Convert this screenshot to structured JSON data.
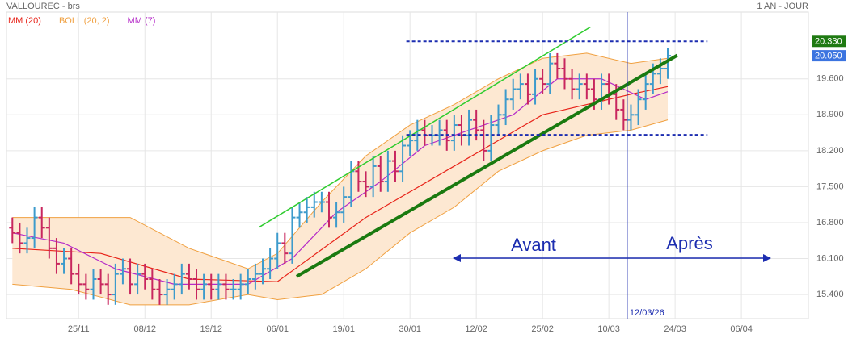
{
  "chart_data": {
    "type": "ohlc",
    "title": "VALLOUREC - brs",
    "period": "1 AN - JOUR",
    "xlim": [
      -2.8,
      106.1
    ],
    "ylim": [
      14.93,
      20.9
    ],
    "xticks": [
      {
        "value": 7,
        "label": "25/11"
      },
      {
        "value": 16,
        "label": "08/12"
      },
      {
        "value": 25,
        "label": "19/12"
      },
      {
        "value": 34,
        "label": "06/01"
      },
      {
        "value": 43,
        "label": "19/01"
      },
      {
        "value": 52,
        "label": "30/01"
      },
      {
        "value": 61,
        "label": "12/02"
      },
      {
        "value": 70,
        "label": "25/02"
      },
      {
        "value": 79,
        "label": "10/03"
      },
      {
        "value": 88,
        "label": "24/03"
      },
      {
        "value": 97,
        "label": "06/04"
      }
    ],
    "yticks": [
      {
        "value": 15.4,
        "label": "15.400"
      },
      {
        "value": 16.1,
        "label": "16.100"
      },
      {
        "value": 16.8,
        "label": "16.800"
      },
      {
        "value": 17.5,
        "label": "17.500"
      },
      {
        "value": 18.2,
        "label": "18.200"
      },
      {
        "value": 18.9,
        "label": "18.900"
      },
      {
        "value": 19.6,
        "label": "19.600"
      }
    ],
    "grid": true,
    "x": [
      -2,
      -1,
      0,
      1,
      2,
      3,
      4,
      5,
      6,
      7,
      8,
      9,
      10,
      11,
      12,
      13,
      14,
      15,
      16,
      17,
      18,
      19,
      20,
      21,
      22,
      23,
      24,
      25,
      26,
      27,
      28,
      29,
      30,
      31,
      32,
      33,
      34,
      35,
      36,
      37,
      38,
      39,
      40,
      41,
      42,
      43,
      44,
      45,
      46,
      47,
      48,
      49,
      50,
      51,
      52,
      53,
      54,
      55,
      56,
      57,
      58,
      59,
      60,
      61,
      62,
      63,
      64,
      65,
      66,
      67,
      68,
      69,
      70,
      71,
      72,
      73,
      74,
      75,
      76,
      77,
      78,
      79,
      80,
      81,
      82,
      83,
      84,
      85,
      86,
      87
    ],
    "up_color": "#3d9bcc",
    "down_color": "#c8265e",
    "open": [
      16.7,
      16.6,
      16.4,
      16.5,
      16.9,
      16.7,
      16.3,
      16.0,
      16.1,
      15.8,
      15.6,
      15.5,
      15.7,
      15.6,
      15.4,
      15.8,
      15.9,
      15.6,
      15.8,
      15.7,
      15.5,
      15.4,
      15.5,
      15.6,
      15.8,
      15.7,
      15.5,
      15.6,
      15.5,
      15.6,
      15.5,
      15.5,
      15.6,
      15.7,
      15.8,
      15.9,
      16.1,
      16.4,
      16.2,
      16.9,
      17.0,
      17.1,
      17.2,
      17.2,
      16.9,
      17.0,
      17.3,
      17.8,
      17.6,
      17.5,
      17.9,
      17.6,
      18.0,
      17.8,
      18.3,
      18.4,
      18.6,
      18.5,
      18.5,
      18.6,
      18.4,
      18.7,
      18.5,
      18.8,
      18.6,
      18.2,
      18.7,
      18.9,
      19.2,
      19.4,
      19.5,
      19.3,
      19.6,
      19.5,
      19.9,
      19.8,
      19.6,
      19.4,
      19.5,
      19.4,
      19.2,
      19.5,
      19.3,
      19.0,
      18.8,
      18.9,
      19.2,
      19.5,
      19.7,
      19.8
    ],
    "high": [
      16.9,
      16.8,
      16.7,
      17.1,
      17.1,
      16.9,
      16.5,
      16.3,
      16.3,
      16.0,
      15.8,
      15.9,
      15.9,
      15.8,
      16.0,
      16.1,
      16.1,
      16.0,
      16.0,
      15.9,
      15.7,
      15.7,
      15.8,
      16.0,
      16.0,
      15.9,
      15.8,
      15.8,
      15.8,
      15.8,
      15.7,
      15.8,
      15.9,
      16.0,
      16.1,
      16.3,
      16.6,
      16.6,
      17.1,
      17.2,
      17.3,
      17.4,
      17.4,
      17.4,
      17.2,
      17.5,
      18.0,
      18.0,
      17.8,
      18.1,
      18.1,
      18.2,
      18.2,
      18.5,
      18.6,
      18.8,
      18.8,
      18.7,
      18.8,
      18.8,
      18.9,
      18.9,
      19.0,
      19.0,
      18.8,
      18.9,
      19.1,
      19.4,
      19.6,
      19.7,
      19.7,
      19.8,
      19.8,
      20.1,
      20.1,
      20.0,
      19.8,
      19.7,
      19.7,
      19.6,
      19.7,
      19.7,
      19.5,
      19.2,
      19.1,
      19.4,
      19.7,
      19.9,
      20.0,
      20.2
    ],
    "low": [
      16.4,
      16.2,
      16.2,
      16.3,
      16.5,
      16.1,
      15.8,
      15.8,
      15.6,
      15.4,
      15.3,
      15.3,
      15.4,
      15.2,
      15.2,
      15.6,
      15.4,
      15.4,
      15.5,
      15.3,
      15.2,
      15.2,
      15.3,
      15.4,
      15.5,
      15.3,
      15.3,
      15.3,
      15.3,
      15.3,
      15.3,
      15.3,
      15.4,
      15.5,
      15.6,
      15.7,
      15.9,
      16.0,
      16.0,
      16.7,
      16.8,
      16.9,
      17.0,
      16.7,
      16.7,
      16.8,
      17.1,
      17.4,
      17.3,
      17.3,
      17.4,
      17.4,
      17.6,
      17.6,
      18.1,
      18.2,
      18.3,
      18.3,
      18.3,
      18.2,
      18.2,
      18.3,
      18.3,
      18.4,
      18.0,
      18.0,
      18.5,
      18.7,
      19.0,
      19.2,
      19.1,
      19.1,
      19.3,
      19.3,
      19.6,
      19.4,
      19.2,
      19.2,
      19.2,
      19.0,
      19.0,
      19.1,
      18.8,
      18.6,
      18.6,
      18.7,
      19.0,
      19.3,
      19.5,
      19.6
    ],
    "close": [
      16.6,
      16.4,
      16.5,
      16.9,
      16.7,
      16.3,
      16.0,
      16.1,
      15.8,
      15.6,
      15.5,
      15.7,
      15.6,
      15.4,
      15.8,
      15.9,
      15.6,
      15.8,
      15.7,
      15.5,
      15.4,
      15.5,
      15.6,
      15.8,
      15.7,
      15.5,
      15.6,
      15.5,
      15.6,
      15.5,
      15.5,
      15.6,
      15.7,
      15.8,
      15.9,
      16.1,
      16.4,
      16.2,
      16.9,
      17.0,
      17.1,
      17.2,
      17.2,
      16.9,
      17.0,
      17.3,
      17.8,
      17.6,
      17.5,
      17.9,
      17.6,
      18.0,
      17.8,
      18.3,
      18.4,
      18.6,
      18.5,
      18.5,
      18.6,
      18.4,
      18.7,
      18.5,
      18.8,
      18.6,
      18.2,
      18.7,
      18.9,
      19.2,
      19.4,
      19.5,
      19.3,
      19.6,
      19.5,
      19.9,
      19.8,
      19.6,
      19.4,
      19.5,
      19.4,
      19.2,
      19.5,
      19.3,
      19.0,
      18.8,
      18.9,
      19.2,
      19.5,
      19.7,
      19.8,
      20.05
    ],
    "indicators": [
      {
        "name": "MM (20)",
        "color": "#e8241a",
        "x": [
          -2,
          10,
          22,
          34,
          46,
          58,
          70,
          82,
          87
        ],
        "values": [
          16.3,
          16.2,
          15.7,
          15.65,
          16.9,
          17.9,
          18.9,
          19.3,
          19.45
        ]
      },
      {
        "name": "BOLL (20, 2)",
        "color": "#f0a040",
        "fill": "#fde8d2",
        "x": [
          -2,
          6,
          14,
          22,
          30,
          34,
          40,
          46,
          52,
          58,
          64,
          70,
          76,
          82,
          87
        ],
        "upper": [
          16.9,
          16.9,
          16.9,
          16.3,
          15.9,
          16.2,
          17.2,
          18.1,
          18.7,
          19.1,
          19.6,
          20.0,
          20.1,
          19.9,
          20.0
        ],
        "lower": [
          15.6,
          15.5,
          15.2,
          15.2,
          15.4,
          15.3,
          15.4,
          15.9,
          16.6,
          17.1,
          17.8,
          18.2,
          18.5,
          18.6,
          18.8
        ]
      },
      {
        "name": "MM (7)",
        "color": "#b52bc8",
        "x": [
          -2,
          5,
          12,
          20,
          30,
          36,
          42,
          48,
          54,
          60,
          66,
          72,
          78,
          84,
          87
        ],
        "values": [
          16.6,
          16.4,
          15.9,
          15.6,
          15.6,
          16.1,
          17.0,
          17.6,
          18.3,
          18.6,
          18.9,
          19.6,
          19.6,
          19.2,
          19.35
        ]
      }
    ],
    "trendlines": [
      {
        "color": "#1a7a10",
        "width": 4,
        "x": [
          36.6,
          88.3
        ],
        "values": [
          15.75,
          20.06
        ]
      },
      {
        "color": "#2ecc2e",
        "width": 1.5,
        "x": [
          31.5,
          76.5
        ],
        "values": [
          16.71,
          20.61
        ]
      }
    ],
    "levels": [
      {
        "color": "#1c2db0",
        "x": [
          51.5,
          92.4
        ],
        "value": 20.33
      },
      {
        "color": "#1c2db0",
        "x": [
          51.5,
          92.4
        ],
        "value": 18.51
      }
    ],
    "marker": {
      "x": 81.5,
      "label": "12/03/26",
      "color": "#1c2db0"
    },
    "before_label": "Avant",
    "after_label": "Après",
    "price_tags": [
      {
        "value": 20.33,
        "label": "20.330",
        "color": "#1f7a12"
      },
      {
        "value": 20.05,
        "label": "20.050",
        "color": "#3b74e0"
      }
    ]
  }
}
